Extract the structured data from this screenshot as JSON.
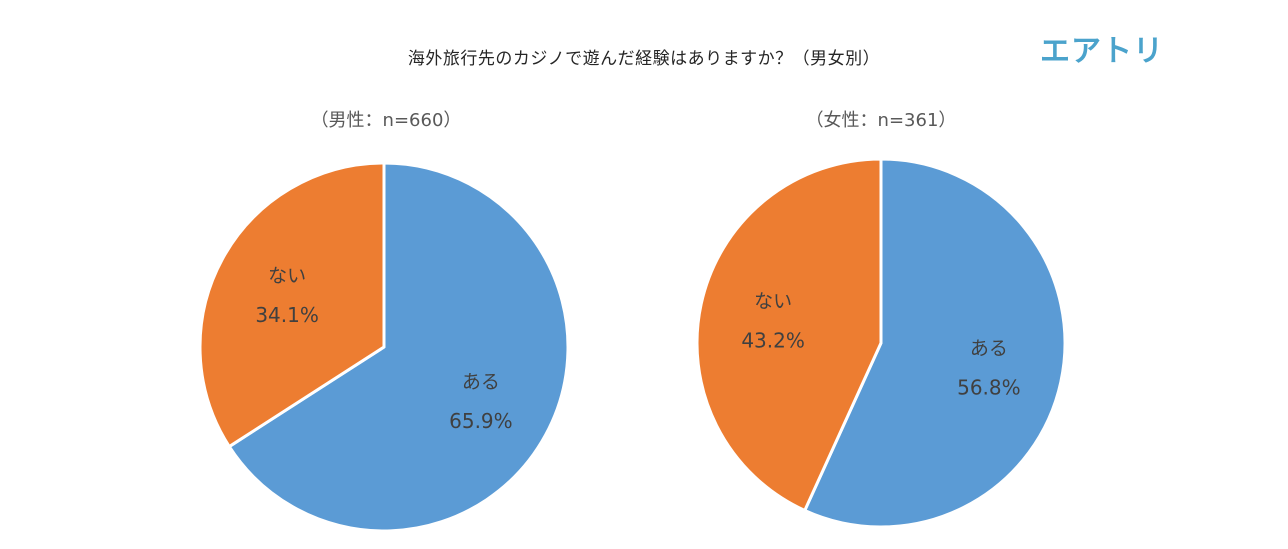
{
  "title": "海外旅行先のカジノで遊んだ経験はありますか？（男女別）",
  "logo": "エアトリ",
  "colors": {
    "aru": "#5b9bd5",
    "nai": "#ed7d31",
    "border": "#ffffff"
  },
  "chart_data": [
    {
      "type": "pie",
      "title": "（男性：n=660）",
      "slices": [
        {
          "label": "ある",
          "value": 65.9,
          "display": "65.9%"
        },
        {
          "label": "ない",
          "value": 34.1,
          "display": "34.1%"
        }
      ]
    },
    {
      "type": "pie",
      "title": "（女性：n=361）",
      "slices": [
        {
          "label": "ある",
          "value": 56.8,
          "display": "56.8%"
        },
        {
          "label": "ない",
          "value": 43.2,
          "display": "43.2%"
        }
      ]
    }
  ]
}
